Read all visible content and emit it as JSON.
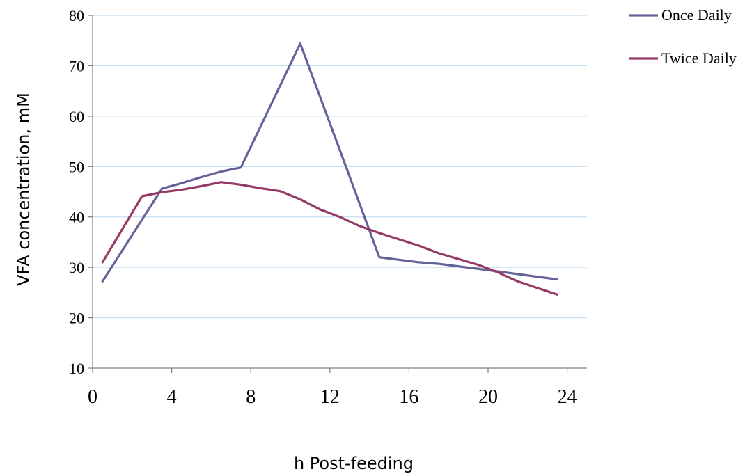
{
  "chart_data": {
    "type": "line",
    "xlabel": "h  Post-feeding",
    "ylabel": "VFA concentration,  mM",
    "xlim": [
      0,
      25
    ],
    "ylim": [
      10,
      80
    ],
    "xticks": [
      0,
      4,
      8,
      12,
      16,
      20,
      24
    ],
    "yticks": [
      10,
      20,
      30,
      40,
      50,
      60,
      70,
      80
    ],
    "grid": "horizontal",
    "legend_position": "top-right",
    "series": [
      {
        "name": "Once Daily",
        "color": "#636399",
        "x": [
          0.5,
          3.5,
          4.5,
          5.5,
          6.5,
          7.5,
          10.5,
          12.5,
          14.5,
          16.5,
          17.5,
          19.5,
          23.5
        ],
        "y": [
          27.2,
          45.6,
          46.7,
          47.9,
          49.0,
          49.8,
          74.4,
          53.3,
          32.0,
          31.0,
          30.7,
          29.7,
          27.6
        ]
      },
      {
        "name": "Twice Daily",
        "color": "#953966",
        "x": [
          0.5,
          2.5,
          3.5,
          4.5,
          5.5,
          6.5,
          7.5,
          8.5,
          9.5,
          10.5,
          11.5,
          12.5,
          13.5,
          14.5,
          16.5,
          17.5,
          19.5,
          20.5,
          21.5,
          23.5
        ],
        "y": [
          31.0,
          44.1,
          44.9,
          45.4,
          46.1,
          46.9,
          46.4,
          45.7,
          45.1,
          43.5,
          41.5,
          40.0,
          38.2,
          36.8,
          34.3,
          32.8,
          30.5,
          29.0,
          27.2,
          24.6
        ]
      }
    ]
  }
}
